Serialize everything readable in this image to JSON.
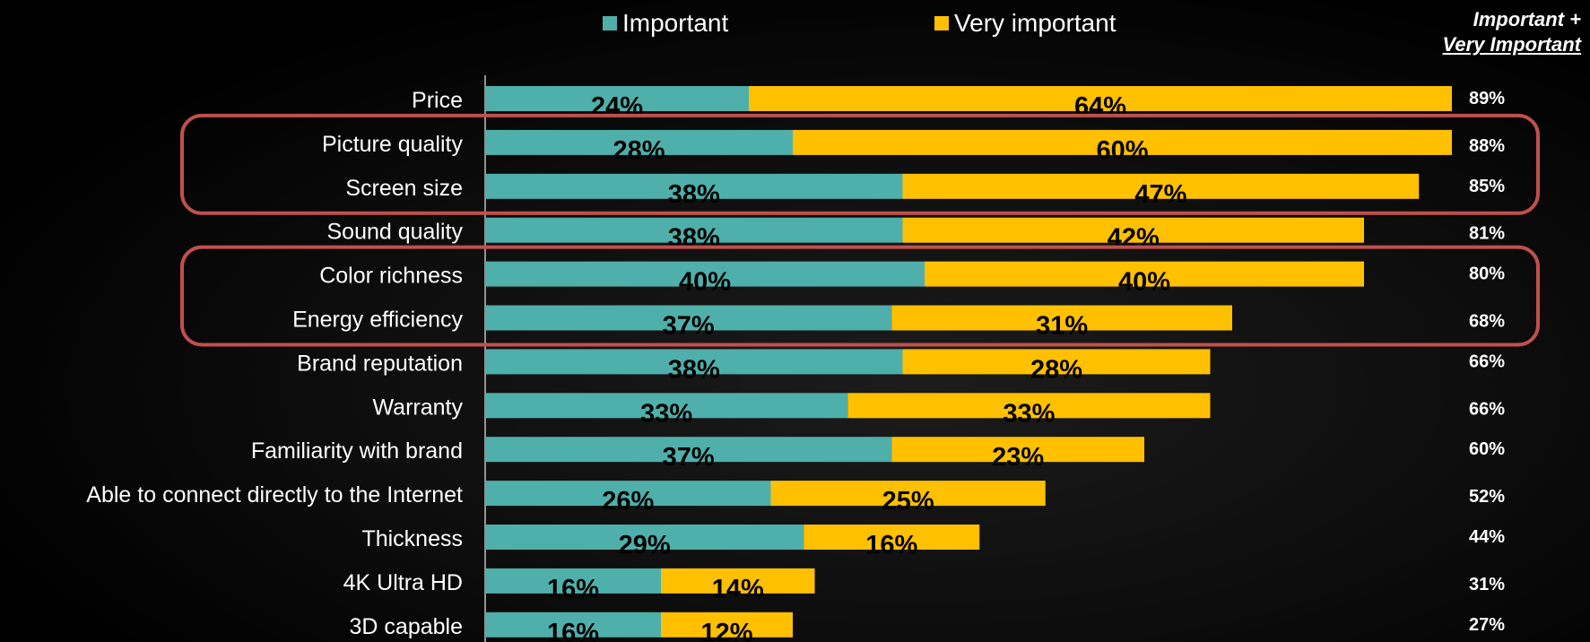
{
  "legend": {
    "important": "Important",
    "very_important": "Very important"
  },
  "total_header": {
    "line1": "Important +",
    "line2": "Very Important"
  },
  "colors": {
    "important": "#4FAFAA",
    "very_important": "#FFC000",
    "highlight_box": "#C0504D",
    "axis": "#BFBFBF"
  },
  "highlight_groups": [
    [
      "Picture quality",
      "Screen size"
    ],
    [
      "Color richness",
      "Energy efficiency"
    ]
  ],
  "chart_data": {
    "type": "bar",
    "orientation": "horizontal",
    "stacked": true,
    "categories": [
      "Price",
      "Picture quality",
      "Screen size",
      "Sound quality",
      "Color richness",
      "Energy efficiency",
      "Brand reputation",
      "Warranty",
      "Familiarity with brand",
      "Able to connect directly to the Internet",
      "Thickness",
      "4K Ultra HD",
      "3D capable"
    ],
    "series": [
      {
        "name": "Important",
        "values": [
          24,
          28,
          38,
          38,
          40,
          37,
          38,
          33,
          37,
          26,
          29,
          16,
          16
        ]
      },
      {
        "name": "Very important",
        "values": [
          64,
          60,
          47,
          42,
          40,
          31,
          28,
          33,
          23,
          25,
          16,
          14,
          12
        ]
      }
    ],
    "data_labels": {
      "Important": [
        "24%",
        "28%",
        "38%",
        "38%",
        "40%",
        "37%",
        "38%",
        "33%",
        "37%",
        "26%",
        "29%",
        "16%",
        "16%"
      ],
      "Very important": [
        "64%",
        "60%",
        "47%",
        "42%",
        "40%",
        "31%",
        "28%",
        "33%",
        "23%",
        "25%",
        "16%",
        "14%",
        "12%"
      ]
    },
    "totals": [
      "89%",
      "88%",
      "85%",
      "81%",
      "80%",
      "68%",
      "66%",
      "66%",
      "60%",
      "52%",
      "44%",
      "31%",
      "27%"
    ],
    "xlim": [
      0,
      88
    ],
    "legend_position": "top",
    "grid": false
  }
}
